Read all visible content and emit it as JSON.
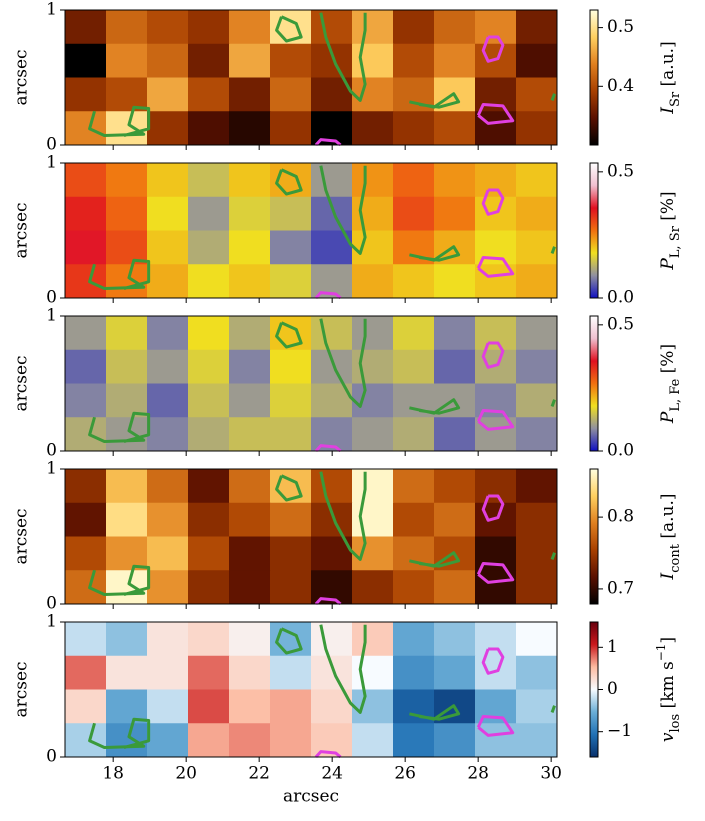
{
  "chart_data": [
    {
      "type": "heatmap",
      "ylabel": "arcsec",
      "xlim": [
        16.68,
        30.16
      ],
      "xticks": [
        18,
        20,
        22,
        24,
        26,
        28,
        30
      ],
      "ylim": [
        0,
        1
      ],
      "yticks": [
        0,
        1
      ],
      "colormap": [
        "#000000",
        "#5a1000",
        "#a84000",
        "#e08020",
        "#ffd060",
        "#ffffe0"
      ],
      "clim": [
        0.3,
        0.53
      ],
      "cticks": [
        0.4,
        0.5
      ],
      "colorbar_label": {
        "main": "I",
        "sub": "Sr",
        "unit": " [a.u.]"
      },
      "z": [
        [
          0.36,
          0.42,
          0.4,
          0.38,
          0.44,
          0.5,
          0.4,
          0.46,
          0.38,
          0.42,
          0.44,
          0.36
        ],
        [
          0.3,
          0.44,
          0.42,
          0.36,
          0.46,
          0.4,
          0.38,
          0.48,
          0.4,
          0.44,
          0.4,
          0.34
        ],
        [
          0.38,
          0.4,
          0.46,
          0.4,
          0.36,
          0.42,
          0.36,
          0.44,
          0.42,
          0.48,
          0.36,
          0.4
        ],
        [
          0.44,
          0.5,
          0.38,
          0.34,
          0.32,
          0.38,
          0.3,
          0.36,
          0.38,
          0.4,
          0.34,
          0.38
        ]
      ]
    },
    {
      "type": "heatmap",
      "ylabel": "arcsec",
      "xlim": [
        16.68,
        30.16
      ],
      "xticks": [
        18,
        20,
        22,
        24,
        26,
        28,
        30
      ],
      "ylim": [
        0,
        1
      ],
      "yticks": [
        0,
        1
      ],
      "colormap": [
        "#1010c0",
        "#9090a0",
        "#f0e020",
        "#f07010",
        "#e01020",
        "#f0c0d0",
        "#ffffff"
      ],
      "clim": [
        0,
        0.535
      ],
      "cticks": [
        {
          "value": 0,
          "label": "0.0"
        },
        0.5
      ],
      "colorbar_label": {
        "main": "P",
        "sub": "L, Sr",
        "unit": " [%]"
      },
      "z": [
        [
          0.3,
          0.26,
          0.2,
          0.14,
          0.2,
          0.22,
          0.1,
          0.24,
          0.28,
          0.24,
          0.22,
          0.2
        ],
        [
          0.34,
          0.28,
          0.18,
          0.1,
          0.16,
          0.14,
          0.06,
          0.22,
          0.3,
          0.26,
          0.2,
          0.22
        ],
        [
          0.36,
          0.3,
          0.2,
          0.12,
          0.18,
          0.08,
          0.04,
          0.2,
          0.26,
          0.22,
          0.18,
          0.2
        ],
        [
          0.32,
          0.26,
          0.22,
          0.18,
          0.2,
          0.16,
          0.1,
          0.22,
          0.2,
          0.18,
          0.2,
          0.22
        ]
      ]
    },
    {
      "type": "heatmap",
      "ylabel": "arcsec",
      "xlim": [
        16.68,
        30.16
      ],
      "xticks": [
        18,
        20,
        22,
        24,
        26,
        28,
        30
      ],
      "ylim": [
        0,
        1
      ],
      "yticks": [
        0,
        1
      ],
      "colormap": [
        "#1010c0",
        "#9090a0",
        "#f0e020",
        "#f07010",
        "#e01020",
        "#f0c0d0",
        "#ffffff"
      ],
      "clim": [
        0,
        0.535
      ],
      "cticks": [
        {
          "value": 0,
          "label": "0.0"
        },
        0.5
      ],
      "colorbar_label": {
        "main": "P",
        "sub": "L, Fe",
        "unit": " [%]"
      },
      "z": [
        [
          0.1,
          0.16,
          0.08,
          0.18,
          0.12,
          0.2,
          0.14,
          0.1,
          0.16,
          0.08,
          0.14,
          0.1
        ],
        [
          0.06,
          0.14,
          0.1,
          0.16,
          0.08,
          0.18,
          0.1,
          0.12,
          0.14,
          0.06,
          0.12,
          0.08
        ],
        [
          0.08,
          0.12,
          0.06,
          0.14,
          0.1,
          0.16,
          0.12,
          0.08,
          0.1,
          0.1,
          0.08,
          0.12
        ],
        [
          0.12,
          0.1,
          0.08,
          0.12,
          0.14,
          0.14,
          0.08,
          0.1,
          0.12,
          0.06,
          0.1,
          0.08
        ]
      ]
    },
    {
      "type": "heatmap",
      "ylabel": "arcsec",
      "xlim": [
        16.68,
        30.16
      ],
      "xticks": [
        18,
        20,
        22,
        24,
        26,
        28,
        30
      ],
      "ylim": [
        0,
        1
      ],
      "yticks": [
        0,
        1
      ],
      "colormap": [
        "#000000",
        "#5a1000",
        "#a84000",
        "#e08020",
        "#ffd060",
        "#ffffe0"
      ],
      "clim": [
        0.679,
        0.867
      ],
      "cticks": [
        0.7,
        0.8
      ],
      "colorbar_label": {
        "main": "I",
        "sub": "cont",
        "unit": " [a.u.]"
      },
      "z": [
        [
          0.74,
          0.82,
          0.78,
          0.72,
          0.78,
          0.82,
          0.76,
          0.86,
          0.78,
          0.76,
          0.74,
          0.72
        ],
        [
          0.72,
          0.84,
          0.8,
          0.74,
          0.76,
          0.78,
          0.74,
          0.86,
          0.76,
          0.78,
          0.72,
          0.74
        ],
        [
          0.76,
          0.8,
          0.82,
          0.76,
          0.72,
          0.74,
          0.72,
          0.8,
          0.78,
          0.76,
          0.7,
          0.74
        ],
        [
          0.78,
          0.86,
          0.8,
          0.74,
          0.72,
          0.74,
          0.7,
          0.74,
          0.76,
          0.78,
          0.7,
          0.74
        ]
      ]
    },
    {
      "type": "heatmap",
      "ylabel": "arcsec",
      "xlabel": "arcsec",
      "xlim": [
        16.68,
        30.16
      ],
      "xticks": [
        18,
        20,
        22,
        24,
        26,
        28,
        30
      ],
      "ylim": [
        0,
        1
      ],
      "yticks": [
        0,
        1
      ],
      "colormap": [
        "#08306b",
        "#2171b5",
        "#6baed6",
        "#f7fbff",
        "#fcbba1",
        "#cb181d",
        "#67000d"
      ],
      "clim": [
        -1.6,
        1.6
      ],
      "cticks": [
        {
          "value": -1,
          "label": "−1"
        },
        0,
        1
      ],
      "colorbar_label": {
        "main": "v",
        "sub": "los",
        "unit": " [km s",
        "unit_sup": "−1",
        "unit_end": "]"
      },
      "z": [
        [
          -0.2,
          -0.4,
          0.2,
          0.3,
          0.1,
          -0.5,
          0.1,
          0.4,
          -0.6,
          -0.4,
          -0.2,
          0.0
        ],
        [
          0.8,
          0.2,
          0.2,
          0.8,
          0.3,
          -0.2,
          0.2,
          0.0,
          -0.8,
          -0.6,
          -0.2,
          -0.4
        ],
        [
          0.3,
          -0.6,
          -0.2,
          0.9,
          0.5,
          0.6,
          0.3,
          -0.4,
          -1.2,
          -1.4,
          -0.6,
          -0.3
        ],
        [
          -0.3,
          -0.8,
          -0.6,
          0.6,
          0.7,
          0.6,
          0.4,
          -0.2,
          -1.0,
          -0.8,
          -0.4,
          -0.4
        ]
      ]
    }
  ]
}
